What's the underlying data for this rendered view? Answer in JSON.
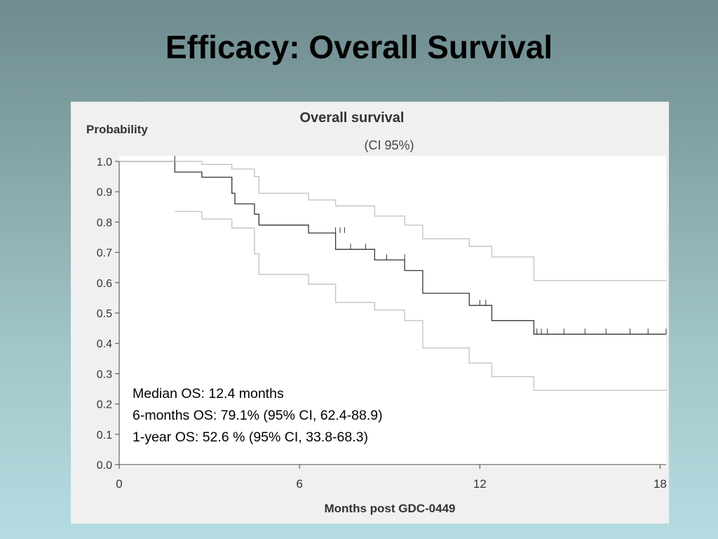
{
  "slide": {
    "title": "Efficacy: Overall Survival"
  },
  "chart_data": {
    "type": "line",
    "title": "Overall survival",
    "subtitle": "(CI 95%)",
    "ylabel": "Probability",
    "xlabel": "Months post GDC-0449",
    "xlim": [
      0,
      18
    ],
    "ylim": [
      0,
      1.0
    ],
    "x_ticks": [
      "0",
      "6",
      "12",
      "18"
    ],
    "y_ticks": [
      "0.0",
      "0.1",
      "0.2",
      "0.3",
      "0.4",
      "0.5",
      "0.6",
      "0.7",
      "0.8",
      "0.9",
      "1.0"
    ],
    "grid": false,
    "annotations": [
      "Median OS: 12.4 months",
      "6-months OS: 79.1% (95% CI, 62.4-88.9)",
      "1-year OS: 52.6 % (95% CI, 33.8-68.3)"
    ],
    "series": [
      {
        "role": "estimate",
        "color": "#333333",
        "x": [
          0,
          1.85,
          1.85,
          2.75,
          2.75,
          3.75,
          3.75,
          3.85,
          3.85,
          4.5,
          4.5,
          4.65,
          4.65,
          6.3,
          6.3,
          7.2,
          7.2,
          8.5,
          8.5,
          9.5,
          9.5,
          10.1,
          10.1,
          11.65,
          11.65,
          12.4,
          12.4,
          13.8,
          13.8,
          18.2
        ],
        "y": [
          1.0,
          1.0,
          0.965,
          0.965,
          0.948,
          0.948,
          0.895,
          0.895,
          0.86,
          0.86,
          0.826,
          0.826,
          0.79,
          0.79,
          0.764,
          0.764,
          0.71,
          0.71,
          0.675,
          0.675,
          0.64,
          0.64,
          0.565,
          0.565,
          0.525,
          0.525,
          0.475,
          0.475,
          0.43,
          0.43
        ]
      },
      {
        "role": "ci-upper",
        "color": "#c4c4c4",
        "x": [
          0,
          2.75,
          2.75,
          3.75,
          3.75,
          4.5,
          4.5,
          4.65,
          4.65,
          6.3,
          6.3,
          7.2,
          7.2,
          8.5,
          8.5,
          9.5,
          9.5,
          10.1,
          10.1,
          11.65,
          11.65,
          12.4,
          12.4,
          13.8,
          13.8,
          18.2
        ],
        "y": [
          1.0,
          1.0,
          0.99,
          0.99,
          0.975,
          0.975,
          0.95,
          0.95,
          0.895,
          0.895,
          0.873,
          0.873,
          0.853,
          0.853,
          0.82,
          0.82,
          0.79,
          0.79,
          0.745,
          0.745,
          0.72,
          0.72,
          0.685,
          0.685,
          0.607,
          0.607
        ]
      },
      {
        "role": "ci-lower",
        "color": "#c4c4c4",
        "x": [
          1.85,
          2.75,
          2.75,
          3.75,
          3.75,
          4.5,
          4.5,
          4.65,
          4.65,
          6.3,
          6.3,
          7.2,
          7.2,
          8.5,
          8.5,
          9.5,
          9.5,
          10.1,
          10.1,
          11.65,
          11.65,
          12.4,
          12.4,
          13.8,
          13.8,
          18.2
        ],
        "y": [
          0.835,
          0.835,
          0.81,
          0.81,
          0.78,
          0.78,
          0.695,
          0.695,
          0.627,
          0.627,
          0.595,
          0.595,
          0.535,
          0.535,
          0.51,
          0.51,
          0.475,
          0.475,
          0.385,
          0.385,
          0.335,
          0.335,
          0.29,
          0.29,
          0.245,
          0.245
        ]
      }
    ],
    "censor_marks": [
      {
        "x": 1.85,
        "y": 1.0
      },
      {
        "x": 7.2,
        "y": 0.764
      },
      {
        "x": 7.35,
        "y": 0.764
      },
      {
        "x": 7.5,
        "y": 0.764
      },
      {
        "x": 7.7,
        "y": 0.71
      },
      {
        "x": 8.2,
        "y": 0.71
      },
      {
        "x": 8.9,
        "y": 0.675
      },
      {
        "x": 9.5,
        "y": 0.675
      },
      {
        "x": 12.0,
        "y": 0.525
      },
      {
        "x": 12.2,
        "y": 0.525
      },
      {
        "x": 13.9,
        "y": 0.43
      },
      {
        "x": 14.05,
        "y": 0.43
      },
      {
        "x": 14.25,
        "y": 0.43
      },
      {
        "x": 14.8,
        "y": 0.43
      },
      {
        "x": 15.5,
        "y": 0.43
      },
      {
        "x": 16.2,
        "y": 0.43
      },
      {
        "x": 17.0,
        "y": 0.43
      },
      {
        "x": 17.6,
        "y": 0.43
      },
      {
        "x": 18.2,
        "y": 0.43
      }
    ]
  }
}
